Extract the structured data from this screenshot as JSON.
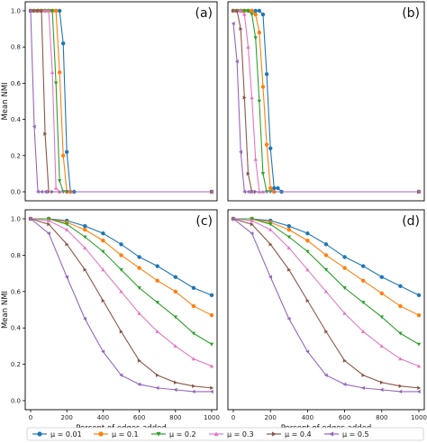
{
  "chart_data": [
    {
      "panel": "(a)",
      "type": "line",
      "ylabel": "Mean NMI",
      "xlabel": "",
      "xlim": [
        0,
        1000
      ],
      "ylim": [
        0,
        1.0
      ],
      "yticks": [
        0.0,
        0.2,
        0.4,
        0.6,
        0.8,
        1.0
      ],
      "xticks": [],
      "series": [
        {
          "name": "μ = 0.01",
          "x": [
            0,
            20,
            40,
            60,
            80,
            100,
            120,
            140,
            160,
            180,
            200,
            220,
            240,
            1000
          ],
          "values": [
            1,
            1,
            1,
            1,
            1,
            1,
            1,
            1,
            1,
            0.82,
            0.22,
            0,
            0,
            0
          ]
        },
        {
          "name": "μ = 0.1",
          "x": [
            0,
            20,
            40,
            60,
            80,
            100,
            120,
            140,
            160,
            180,
            200,
            220,
            1000
          ],
          "values": [
            1,
            1,
            1,
            1,
            1,
            1,
            1,
            1,
            0.66,
            0.2,
            0,
            0,
            0
          ]
        },
        {
          "name": "μ = 0.2",
          "x": [
            0,
            20,
            40,
            60,
            80,
            100,
            120,
            140,
            160,
            180,
            200,
            1000
          ],
          "values": [
            1,
            1,
            1,
            1,
            1,
            1,
            1,
            0.6,
            0.06,
            0,
            0,
            0
          ]
        },
        {
          "name": "μ = 0.3",
          "x": [
            0,
            20,
            40,
            60,
            80,
            100,
            120,
            140,
            160,
            1000
          ],
          "values": [
            1,
            1,
            1,
            1,
            1,
            1,
            0.66,
            0.02,
            0,
            0
          ]
        },
        {
          "name": "μ = 0.4",
          "x": [
            0,
            20,
            40,
            60,
            80,
            100,
            120,
            1000
          ],
          "values": [
            1,
            1,
            1,
            1,
            0.32,
            0,
            0,
            0
          ]
        },
        {
          "name": "μ = 0.5",
          "x": [
            0,
            20,
            40,
            60,
            80,
            1000
          ],
          "values": [
            1,
            0.36,
            0,
            0,
            0,
            0
          ]
        }
      ]
    },
    {
      "panel": "(b)",
      "type": "line",
      "ylabel": "",
      "xlabel": "",
      "xlim": [
        0,
        1000
      ],
      "ylim": [
        0,
        1.0
      ],
      "yticks": [],
      "xticks": [],
      "series": [
        {
          "name": "μ = 0.01",
          "x": [
            0,
            20,
            40,
            60,
            80,
            100,
            120,
            140,
            160,
            180,
            200,
            220,
            240,
            260,
            1000
          ],
          "values": [
            1,
            1,
            1,
            1,
            1,
            1,
            1,
            1,
            0.98,
            0.65,
            0.24,
            0.02,
            0.02,
            0,
            0
          ]
        },
        {
          "name": "μ = 0.1",
          "x": [
            0,
            20,
            40,
            60,
            80,
            100,
            120,
            140,
            160,
            180,
            200,
            220,
            1000
          ],
          "values": [
            1,
            1,
            1,
            1,
            1,
            1,
            0.98,
            0.88,
            0.58,
            0.26,
            0.02,
            0,
            0
          ]
        },
        {
          "name": "μ = 0.2",
          "x": [
            0,
            20,
            40,
            60,
            80,
            100,
            120,
            140,
            160,
            180,
            200,
            1000
          ],
          "values": [
            1,
            1,
            1,
            1,
            1,
            0.98,
            0.85,
            0.5,
            0.1,
            0,
            0,
            0
          ]
        },
        {
          "name": "μ = 0.3",
          "x": [
            0,
            20,
            40,
            60,
            80,
            100,
            120,
            140,
            160,
            1000
          ],
          "values": [
            1,
            1,
            1,
            0.98,
            0.8,
            0.52,
            0.18,
            0,
            0,
            0
          ]
        },
        {
          "name": "μ = 0.4",
          "x": [
            0,
            20,
            40,
            60,
            80,
            100,
            120,
            1000
          ],
          "values": [
            1,
            1,
            0.9,
            0.52,
            0.1,
            0,
            0,
            0
          ]
        },
        {
          "name": "μ = 0.5",
          "x": [
            0,
            20,
            40,
            60,
            80,
            100,
            1000
          ],
          "values": [
            0.93,
            0.72,
            0.22,
            0,
            0,
            0,
            0
          ]
        }
      ]
    },
    {
      "panel": "(c)",
      "type": "line",
      "ylabel": "Mean NMI",
      "xlabel": "Percent of edges added",
      "xlim": [
        0,
        1000
      ],
      "ylim": [
        0,
        1.0
      ],
      "yticks": [
        0.0,
        0.2,
        0.4,
        0.6,
        0.8,
        1.0
      ],
      "xticks": [
        0,
        200,
        400,
        600,
        800,
        1000
      ],
      "series": [
        {
          "name": "μ = 0.01",
          "x": [
            0,
            100,
            200,
            300,
            400,
            500,
            600,
            700,
            800,
            900,
            1000
          ],
          "values": [
            1,
            1,
            0.99,
            0.96,
            0.92,
            0.86,
            0.79,
            0.74,
            0.68,
            0.62,
            0.58
          ]
        },
        {
          "name": "μ = 0.1",
          "x": [
            0,
            100,
            200,
            300,
            400,
            500,
            600,
            700,
            800,
            900,
            1000
          ],
          "values": [
            1,
            1,
            0.98,
            0.94,
            0.88,
            0.8,
            0.73,
            0.66,
            0.6,
            0.52,
            0.47
          ]
        },
        {
          "name": "μ = 0.2",
          "x": [
            0,
            100,
            200,
            300,
            400,
            500,
            600,
            700,
            800,
            900,
            1000
          ],
          "values": [
            1,
            1,
            0.97,
            0.9,
            0.82,
            0.72,
            0.62,
            0.54,
            0.46,
            0.37,
            0.31
          ]
        },
        {
          "name": "μ = 0.3",
          "x": [
            0,
            100,
            200,
            300,
            400,
            500,
            600,
            700,
            800,
            900,
            1000
          ],
          "values": [
            1,
            0.99,
            0.94,
            0.84,
            0.72,
            0.6,
            0.48,
            0.38,
            0.3,
            0.23,
            0.19
          ]
        },
        {
          "name": "μ = 0.4",
          "x": [
            0,
            100,
            200,
            300,
            400,
            500,
            600,
            700,
            800,
            900,
            1000
          ],
          "values": [
            1,
            0.97,
            0.86,
            0.72,
            0.55,
            0.38,
            0.22,
            0.14,
            0.1,
            0.08,
            0.07
          ]
        },
        {
          "name": "μ = 0.5",
          "x": [
            0,
            100,
            200,
            300,
            400,
            500,
            600,
            700,
            800,
            900,
            1000
          ],
          "values": [
            1,
            0.92,
            0.68,
            0.45,
            0.27,
            0.14,
            0.09,
            0.07,
            0.06,
            0.05,
            0.05
          ]
        }
      ]
    },
    {
      "panel": "(d)",
      "type": "line",
      "ylabel": "",
      "xlabel": "Percent of edges added",
      "xlim": [
        0,
        1000
      ],
      "ylim": [
        0,
        1.0
      ],
      "yticks": [],
      "xticks": [
        0,
        200,
        400,
        600,
        800,
        1000
      ],
      "series": [
        {
          "name": "μ = 0.01",
          "x": [
            0,
            100,
            200,
            300,
            400,
            500,
            600,
            700,
            800,
            900,
            1000
          ],
          "values": [
            1,
            1,
            0.99,
            0.96,
            0.92,
            0.86,
            0.79,
            0.74,
            0.68,
            0.63,
            0.58
          ]
        },
        {
          "name": "μ = 0.1",
          "x": [
            0,
            100,
            200,
            300,
            400,
            500,
            600,
            700,
            800,
            900,
            1000
          ],
          "values": [
            1,
            1,
            0.98,
            0.94,
            0.88,
            0.8,
            0.73,
            0.66,
            0.59,
            0.52,
            0.47
          ]
        },
        {
          "name": "μ = 0.2",
          "x": [
            0,
            100,
            200,
            300,
            400,
            500,
            600,
            700,
            800,
            900,
            1000
          ],
          "values": [
            1,
            1,
            0.97,
            0.9,
            0.82,
            0.72,
            0.62,
            0.54,
            0.46,
            0.37,
            0.31
          ]
        },
        {
          "name": "μ = 0.3",
          "x": [
            0,
            100,
            200,
            300,
            400,
            500,
            600,
            700,
            800,
            900,
            1000
          ],
          "values": [
            1,
            0.99,
            0.94,
            0.84,
            0.72,
            0.6,
            0.48,
            0.38,
            0.3,
            0.23,
            0.19
          ]
        },
        {
          "name": "μ = 0.4",
          "x": [
            0,
            100,
            200,
            300,
            400,
            500,
            600,
            700,
            800,
            900,
            1000
          ],
          "values": [
            1,
            0.97,
            0.86,
            0.72,
            0.55,
            0.38,
            0.22,
            0.14,
            0.1,
            0.08,
            0.07
          ]
        },
        {
          "name": "μ = 0.5",
          "x": [
            0,
            100,
            200,
            300,
            400,
            500,
            600,
            700,
            800,
            900,
            1000
          ],
          "values": [
            1,
            0.92,
            0.68,
            0.45,
            0.27,
            0.14,
            0.09,
            0.07,
            0.06,
            0.05,
            0.05
          ]
        }
      ]
    }
  ],
  "legend": {
    "placement": "bottom",
    "entries": [
      {
        "label": "μ = 0.01",
        "color": "#1f77b4",
        "marker": "circle"
      },
      {
        "label": "μ = 0.1",
        "color": "#ff7f0e",
        "marker": "circle"
      },
      {
        "label": "μ = 0.2",
        "color": "#2ca02c",
        "marker": "triangle-down"
      },
      {
        "label": "μ = 0.3",
        "color": "#e377c2",
        "marker": "triangle-up"
      },
      {
        "label": "μ = 0.4",
        "color": "#8c564b",
        "marker": "triangle-right"
      },
      {
        "label": "μ = 0.5",
        "color": "#9467bd",
        "marker": "triangle-left"
      }
    ]
  },
  "grid": false
}
